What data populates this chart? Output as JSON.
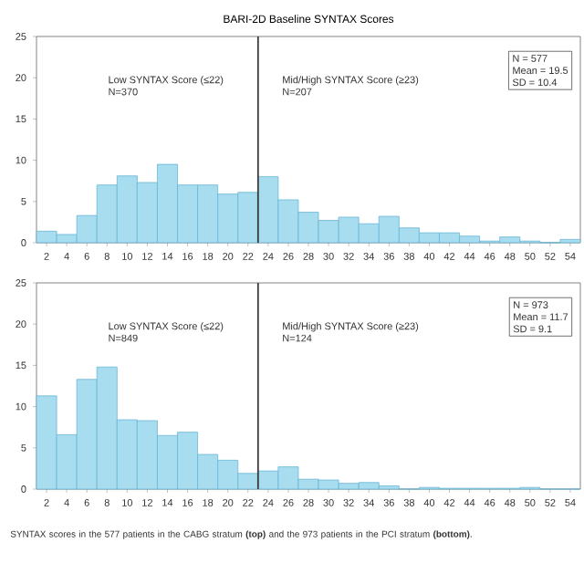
{
  "chart_data": [
    {
      "type": "histogram",
      "title": "BARI-2D Baseline SYNTAX Scores",
      "color": "#a8dcef",
      "bins": [
        1,
        3,
        5,
        7,
        9,
        11,
        13,
        15,
        17,
        19,
        21,
        23,
        25,
        27,
        29,
        31,
        33,
        35,
        37,
        39,
        41,
        43,
        45,
        47,
        49,
        51,
        53,
        55
      ],
      "values": [
        1.4,
        1.0,
        3.3,
        7.0,
        8.1,
        7.3,
        9.5,
        7.0,
        7.0,
        5.9,
        6.1,
        8.0,
        5.2,
        3.7,
        2.7,
        3.1,
        2.3,
        3.2,
        1.8,
        1.2,
        1.2,
        0.8,
        0.2,
        0.7,
        0.2,
        0,
        0.4
      ],
      "xlim": [
        1,
        55
      ],
      "xticks": [
        2,
        4,
        6,
        8,
        10,
        12,
        14,
        16,
        18,
        20,
        22,
        24,
        26,
        28,
        30,
        32,
        34,
        36,
        38,
        40,
        42,
        44,
        46,
        48,
        50,
        52,
        54
      ],
      "ylim": [
        0,
        25
      ],
      "yticks": [
        0,
        5,
        10,
        15,
        20,
        25
      ],
      "ref_lines": [
        {
          "axis": "x",
          "value": 23,
          "color": "#3a3a3a"
        }
      ],
      "annotations": [
        "Low SYNTAX Score (≤22)",
        "N=370",
        "Mid/High SYNTAX Score (≥23)",
        "N=207",
        "N = 577",
        "Mean = 19.5",
        "SD = 10.4"
      ]
    },
    {
      "type": "histogram",
      "color": "#a8dcef",
      "bins": [
        1,
        3,
        5,
        7,
        9,
        11,
        13,
        15,
        17,
        19,
        21,
        23,
        25,
        27,
        29,
        31,
        33,
        35,
        37,
        39,
        41,
        43,
        45,
        47,
        49,
        51,
        53,
        55
      ],
      "values": [
        11.3,
        6.6,
        13.3,
        14.8,
        8.4,
        8.3,
        6.5,
        6.9,
        4.2,
        3.5,
        1.9,
        2.2,
        2.7,
        1.2,
        1.1,
        0.7,
        0.8,
        0.4,
        0,
        0.2,
        0.1,
        0.1,
        0.1,
        0.1,
        0.2,
        0,
        0
      ],
      "xlim": [
        1,
        55
      ],
      "xticks": [
        2,
        4,
        6,
        8,
        10,
        12,
        14,
        16,
        18,
        20,
        22,
        24,
        26,
        28,
        30,
        32,
        34,
        36,
        38,
        40,
        42,
        44,
        46,
        48,
        50,
        52,
        54
      ],
      "ylim": [
        0,
        25
      ],
      "yticks": [
        0,
        5,
        10,
        15,
        20,
        25
      ],
      "ref_lines": [
        {
          "axis": "x",
          "value": 23,
          "color": "#3a3a3a"
        }
      ],
      "annotations": [
        "Low SYNTAX Score (≤22)",
        "N=849",
        "Mid/High SYNTAX Score (≥23)",
        "N=124",
        "N = 973",
        "Mean = 11.7",
        "SD = 9.1",
        "SYNTAX scores in the 577 patients in the CABG stratum **(top)** and the 973 patients in the PCI stratum **(bottom)**."
      ]
    }
  ]
}
